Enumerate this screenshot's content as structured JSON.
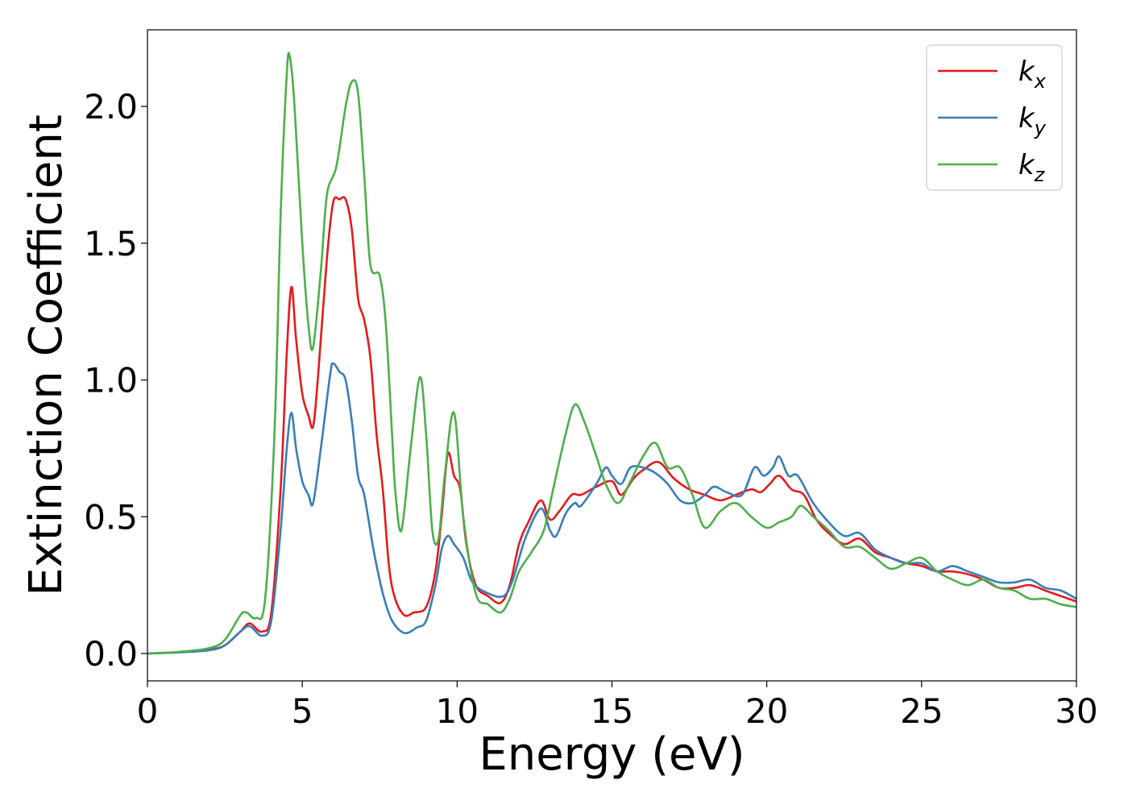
{
  "chart_data": {
    "type": "line",
    "title": "",
    "xlabel": "Energy (eV)",
    "ylabel": "Extinction Coefficient",
    "xlim": [
      0,
      30
    ],
    "ylim": [
      -0.1,
      2.28
    ],
    "x_ticks": [
      0,
      5,
      10,
      15,
      20,
      25,
      30
    ],
    "x_tick_labels": [
      "0",
      "5",
      "10",
      "15",
      "20",
      "25",
      "30"
    ],
    "y_ticks": [
      0.0,
      0.5,
      1.0,
      1.5,
      2.0
    ],
    "y_tick_labels": [
      "0.0",
      "0.5",
      "1.0",
      "1.5",
      "2.0"
    ],
    "grid": false,
    "legend_position": "top-right",
    "series": [
      {
        "name": "k",
        "subscript": "x",
        "color": "#e41a1c",
        "points": [
          [
            0,
            0
          ],
          [
            1,
            0.005
          ],
          [
            2,
            0.015
          ],
          [
            2.5,
            0.03
          ],
          [
            3,
            0.08
          ],
          [
            3.3,
            0.11
          ],
          [
            3.7,
            0.08
          ],
          [
            4.0,
            0.15
          ],
          [
            4.3,
            0.6
          ],
          [
            4.5,
            1.1
          ],
          [
            4.65,
            1.34
          ],
          [
            4.8,
            1.15
          ],
          [
            5.0,
            0.95
          ],
          [
            5.2,
            0.87
          ],
          [
            5.35,
            0.83
          ],
          [
            5.5,
            1.0
          ],
          [
            5.8,
            1.45
          ],
          [
            6.0,
            1.65
          ],
          [
            6.2,
            1.66
          ],
          [
            6.4,
            1.66
          ],
          [
            6.6,
            1.55
          ],
          [
            6.8,
            1.3
          ],
          [
            7.0,
            1.22
          ],
          [
            7.2,
            1.08
          ],
          [
            7.4,
            0.8
          ],
          [
            7.6,
            0.6
          ],
          [
            7.8,
            0.32
          ],
          [
            8.0,
            0.2
          ],
          [
            8.3,
            0.14
          ],
          [
            8.6,
            0.15
          ],
          [
            9.0,
            0.17
          ],
          [
            9.3,
            0.3
          ],
          [
            9.5,
            0.5
          ],
          [
            9.7,
            0.73
          ],
          [
            9.9,
            0.65
          ],
          [
            10.1,
            0.6
          ],
          [
            10.3,
            0.4
          ],
          [
            10.6,
            0.25
          ],
          [
            11.0,
            0.21
          ],
          [
            11.4,
            0.185
          ],
          [
            11.7,
            0.25
          ],
          [
            12.0,
            0.4
          ],
          [
            12.3,
            0.48
          ],
          [
            12.7,
            0.56
          ],
          [
            13.0,
            0.49
          ],
          [
            13.3,
            0.52
          ],
          [
            13.7,
            0.58
          ],
          [
            14.0,
            0.58
          ],
          [
            14.5,
            0.61
          ],
          [
            15.0,
            0.63
          ],
          [
            15.3,
            0.58
          ],
          [
            15.7,
            0.64
          ],
          [
            16.0,
            0.67
          ],
          [
            16.5,
            0.7
          ],
          [
            17.0,
            0.64
          ],
          [
            17.5,
            0.6
          ],
          [
            18.0,
            0.58
          ],
          [
            18.5,
            0.56
          ],
          [
            19.0,
            0.58
          ],
          [
            19.5,
            0.6
          ],
          [
            19.8,
            0.59
          ],
          [
            20.1,
            0.62
          ],
          [
            20.4,
            0.65
          ],
          [
            20.8,
            0.6
          ],
          [
            21.2,
            0.58
          ],
          [
            21.6,
            0.49
          ],
          [
            22.0,
            0.44
          ],
          [
            22.5,
            0.4
          ],
          [
            23.0,
            0.42
          ],
          [
            23.5,
            0.37
          ],
          [
            24.0,
            0.35
          ],
          [
            24.5,
            0.33
          ],
          [
            25.0,
            0.32
          ],
          [
            25.5,
            0.3
          ],
          [
            26.0,
            0.3
          ],
          [
            26.5,
            0.29
          ],
          [
            27.0,
            0.27
          ],
          [
            27.5,
            0.24
          ],
          [
            28.0,
            0.24
          ],
          [
            28.5,
            0.25
          ],
          [
            29.0,
            0.23
          ],
          [
            29.5,
            0.21
          ],
          [
            30.0,
            0.19
          ]
        ]
      },
      {
        "name": "k",
        "subscript": "y",
        "color": "#377eb8",
        "points": [
          [
            0,
            0
          ],
          [
            1,
            0.004
          ],
          [
            2,
            0.012
          ],
          [
            2.5,
            0.03
          ],
          [
            3,
            0.08
          ],
          [
            3.3,
            0.1
          ],
          [
            3.7,
            0.065
          ],
          [
            4.0,
            0.12
          ],
          [
            4.3,
            0.45
          ],
          [
            4.5,
            0.75
          ],
          [
            4.65,
            0.88
          ],
          [
            4.8,
            0.75
          ],
          [
            5.0,
            0.63
          ],
          [
            5.2,
            0.58
          ],
          [
            5.35,
            0.55
          ],
          [
            5.6,
            0.75
          ],
          [
            5.9,
            1.02
          ],
          [
            6.0,
            1.06
          ],
          [
            6.2,
            1.03
          ],
          [
            6.4,
            1.0
          ],
          [
            6.6,
            0.85
          ],
          [
            6.8,
            0.65
          ],
          [
            7.0,
            0.58
          ],
          [
            7.3,
            0.38
          ],
          [
            7.6,
            0.22
          ],
          [
            7.9,
            0.12
          ],
          [
            8.3,
            0.075
          ],
          [
            8.7,
            0.095
          ],
          [
            9.0,
            0.12
          ],
          [
            9.3,
            0.25
          ],
          [
            9.5,
            0.38
          ],
          [
            9.7,
            0.43
          ],
          [
            9.9,
            0.4
          ],
          [
            10.2,
            0.35
          ],
          [
            10.5,
            0.26
          ],
          [
            11.0,
            0.22
          ],
          [
            11.5,
            0.21
          ],
          [
            11.8,
            0.27
          ],
          [
            12.2,
            0.42
          ],
          [
            12.7,
            0.53
          ],
          [
            13.0,
            0.45
          ],
          [
            13.2,
            0.43
          ],
          [
            13.5,
            0.51
          ],
          [
            13.8,
            0.55
          ],
          [
            14.0,
            0.54
          ],
          [
            14.5,
            0.62
          ],
          [
            14.8,
            0.68
          ],
          [
            15.0,
            0.65
          ],
          [
            15.3,
            0.62
          ],
          [
            15.6,
            0.68
          ],
          [
            16.0,
            0.68
          ],
          [
            16.4,
            0.66
          ],
          [
            16.8,
            0.62
          ],
          [
            17.2,
            0.56
          ],
          [
            17.6,
            0.55
          ],
          [
            18.0,
            0.58
          ],
          [
            18.3,
            0.61
          ],
          [
            18.7,
            0.59
          ],
          [
            19.2,
            0.58
          ],
          [
            19.6,
            0.68
          ],
          [
            19.9,
            0.65
          ],
          [
            20.2,
            0.68
          ],
          [
            20.4,
            0.72
          ],
          [
            20.7,
            0.65
          ],
          [
            21.0,
            0.65
          ],
          [
            21.5,
            0.55
          ],
          [
            22.0,
            0.48
          ],
          [
            22.5,
            0.43
          ],
          [
            23.0,
            0.44
          ],
          [
            23.5,
            0.38
          ],
          [
            24.0,
            0.35
          ],
          [
            24.5,
            0.33
          ],
          [
            25.0,
            0.33
          ],
          [
            25.5,
            0.3
          ],
          [
            26.0,
            0.32
          ],
          [
            26.5,
            0.3
          ],
          [
            27.0,
            0.28
          ],
          [
            27.5,
            0.26
          ],
          [
            28.0,
            0.26
          ],
          [
            28.5,
            0.27
          ],
          [
            29.0,
            0.24
          ],
          [
            29.5,
            0.23
          ],
          [
            30.0,
            0.2
          ]
        ]
      },
      {
        "name": "k",
        "subscript": "z",
        "color": "#4daf4a",
        "points": [
          [
            0,
            0
          ],
          [
            1,
            0.006
          ],
          [
            2,
            0.02
          ],
          [
            2.5,
            0.05
          ],
          [
            3,
            0.14
          ],
          [
            3.2,
            0.15
          ],
          [
            3.5,
            0.13
          ],
          [
            3.8,
            0.2
          ],
          [
            4.1,
            0.8
          ],
          [
            4.3,
            1.6
          ],
          [
            4.5,
            2.12
          ],
          [
            4.6,
            2.18
          ],
          [
            4.75,
            2.0
          ],
          [
            5.0,
            1.5
          ],
          [
            5.2,
            1.2
          ],
          [
            5.35,
            1.12
          ],
          [
            5.6,
            1.4
          ],
          [
            5.8,
            1.68
          ],
          [
            6.1,
            1.78
          ],
          [
            6.4,
            2.0
          ],
          [
            6.6,
            2.09
          ],
          [
            6.8,
            2.05
          ],
          [
            7.0,
            1.75
          ],
          [
            7.2,
            1.42
          ],
          [
            7.5,
            1.38
          ],
          [
            7.7,
            1.2
          ],
          [
            7.9,
            0.8
          ],
          [
            8.0,
            0.6
          ],
          [
            8.2,
            0.45
          ],
          [
            8.5,
            0.75
          ],
          [
            8.8,
            1.01
          ],
          [
            9.0,
            0.8
          ],
          [
            9.2,
            0.45
          ],
          [
            9.4,
            0.42
          ],
          [
            9.6,
            0.65
          ],
          [
            9.9,
            0.88
          ],
          [
            10.2,
            0.5
          ],
          [
            10.6,
            0.22
          ],
          [
            11.0,
            0.18
          ],
          [
            11.4,
            0.15
          ],
          [
            11.7,
            0.2
          ],
          [
            12.0,
            0.3
          ],
          [
            12.4,
            0.37
          ],
          [
            12.8,
            0.45
          ],
          [
            13.1,
            0.6
          ],
          [
            13.5,
            0.8
          ],
          [
            13.8,
            0.91
          ],
          [
            14.1,
            0.85
          ],
          [
            14.5,
            0.72
          ],
          [
            14.8,
            0.62
          ],
          [
            15.2,
            0.55
          ],
          [
            15.6,
            0.63
          ],
          [
            16.0,
            0.72
          ],
          [
            16.4,
            0.77
          ],
          [
            16.8,
            0.68
          ],
          [
            17.2,
            0.68
          ],
          [
            17.6,
            0.58
          ],
          [
            18.0,
            0.46
          ],
          [
            18.5,
            0.52
          ],
          [
            19.0,
            0.55
          ],
          [
            19.5,
            0.5
          ],
          [
            20.0,
            0.46
          ],
          [
            20.4,
            0.48
          ],
          [
            20.8,
            0.5
          ],
          [
            21.1,
            0.54
          ],
          [
            21.5,
            0.5
          ],
          [
            22.0,
            0.45
          ],
          [
            22.5,
            0.39
          ],
          [
            23.0,
            0.39
          ],
          [
            23.5,
            0.35
          ],
          [
            24.0,
            0.31
          ],
          [
            24.5,
            0.33
          ],
          [
            25.0,
            0.35
          ],
          [
            25.5,
            0.3
          ],
          [
            26.0,
            0.27
          ],
          [
            26.5,
            0.25
          ],
          [
            27.0,
            0.27
          ],
          [
            27.5,
            0.24
          ],
          [
            28.0,
            0.23
          ],
          [
            28.5,
            0.2
          ],
          [
            29.0,
            0.2
          ],
          [
            29.5,
            0.18
          ],
          [
            30.0,
            0.17
          ]
        ]
      }
    ]
  }
}
